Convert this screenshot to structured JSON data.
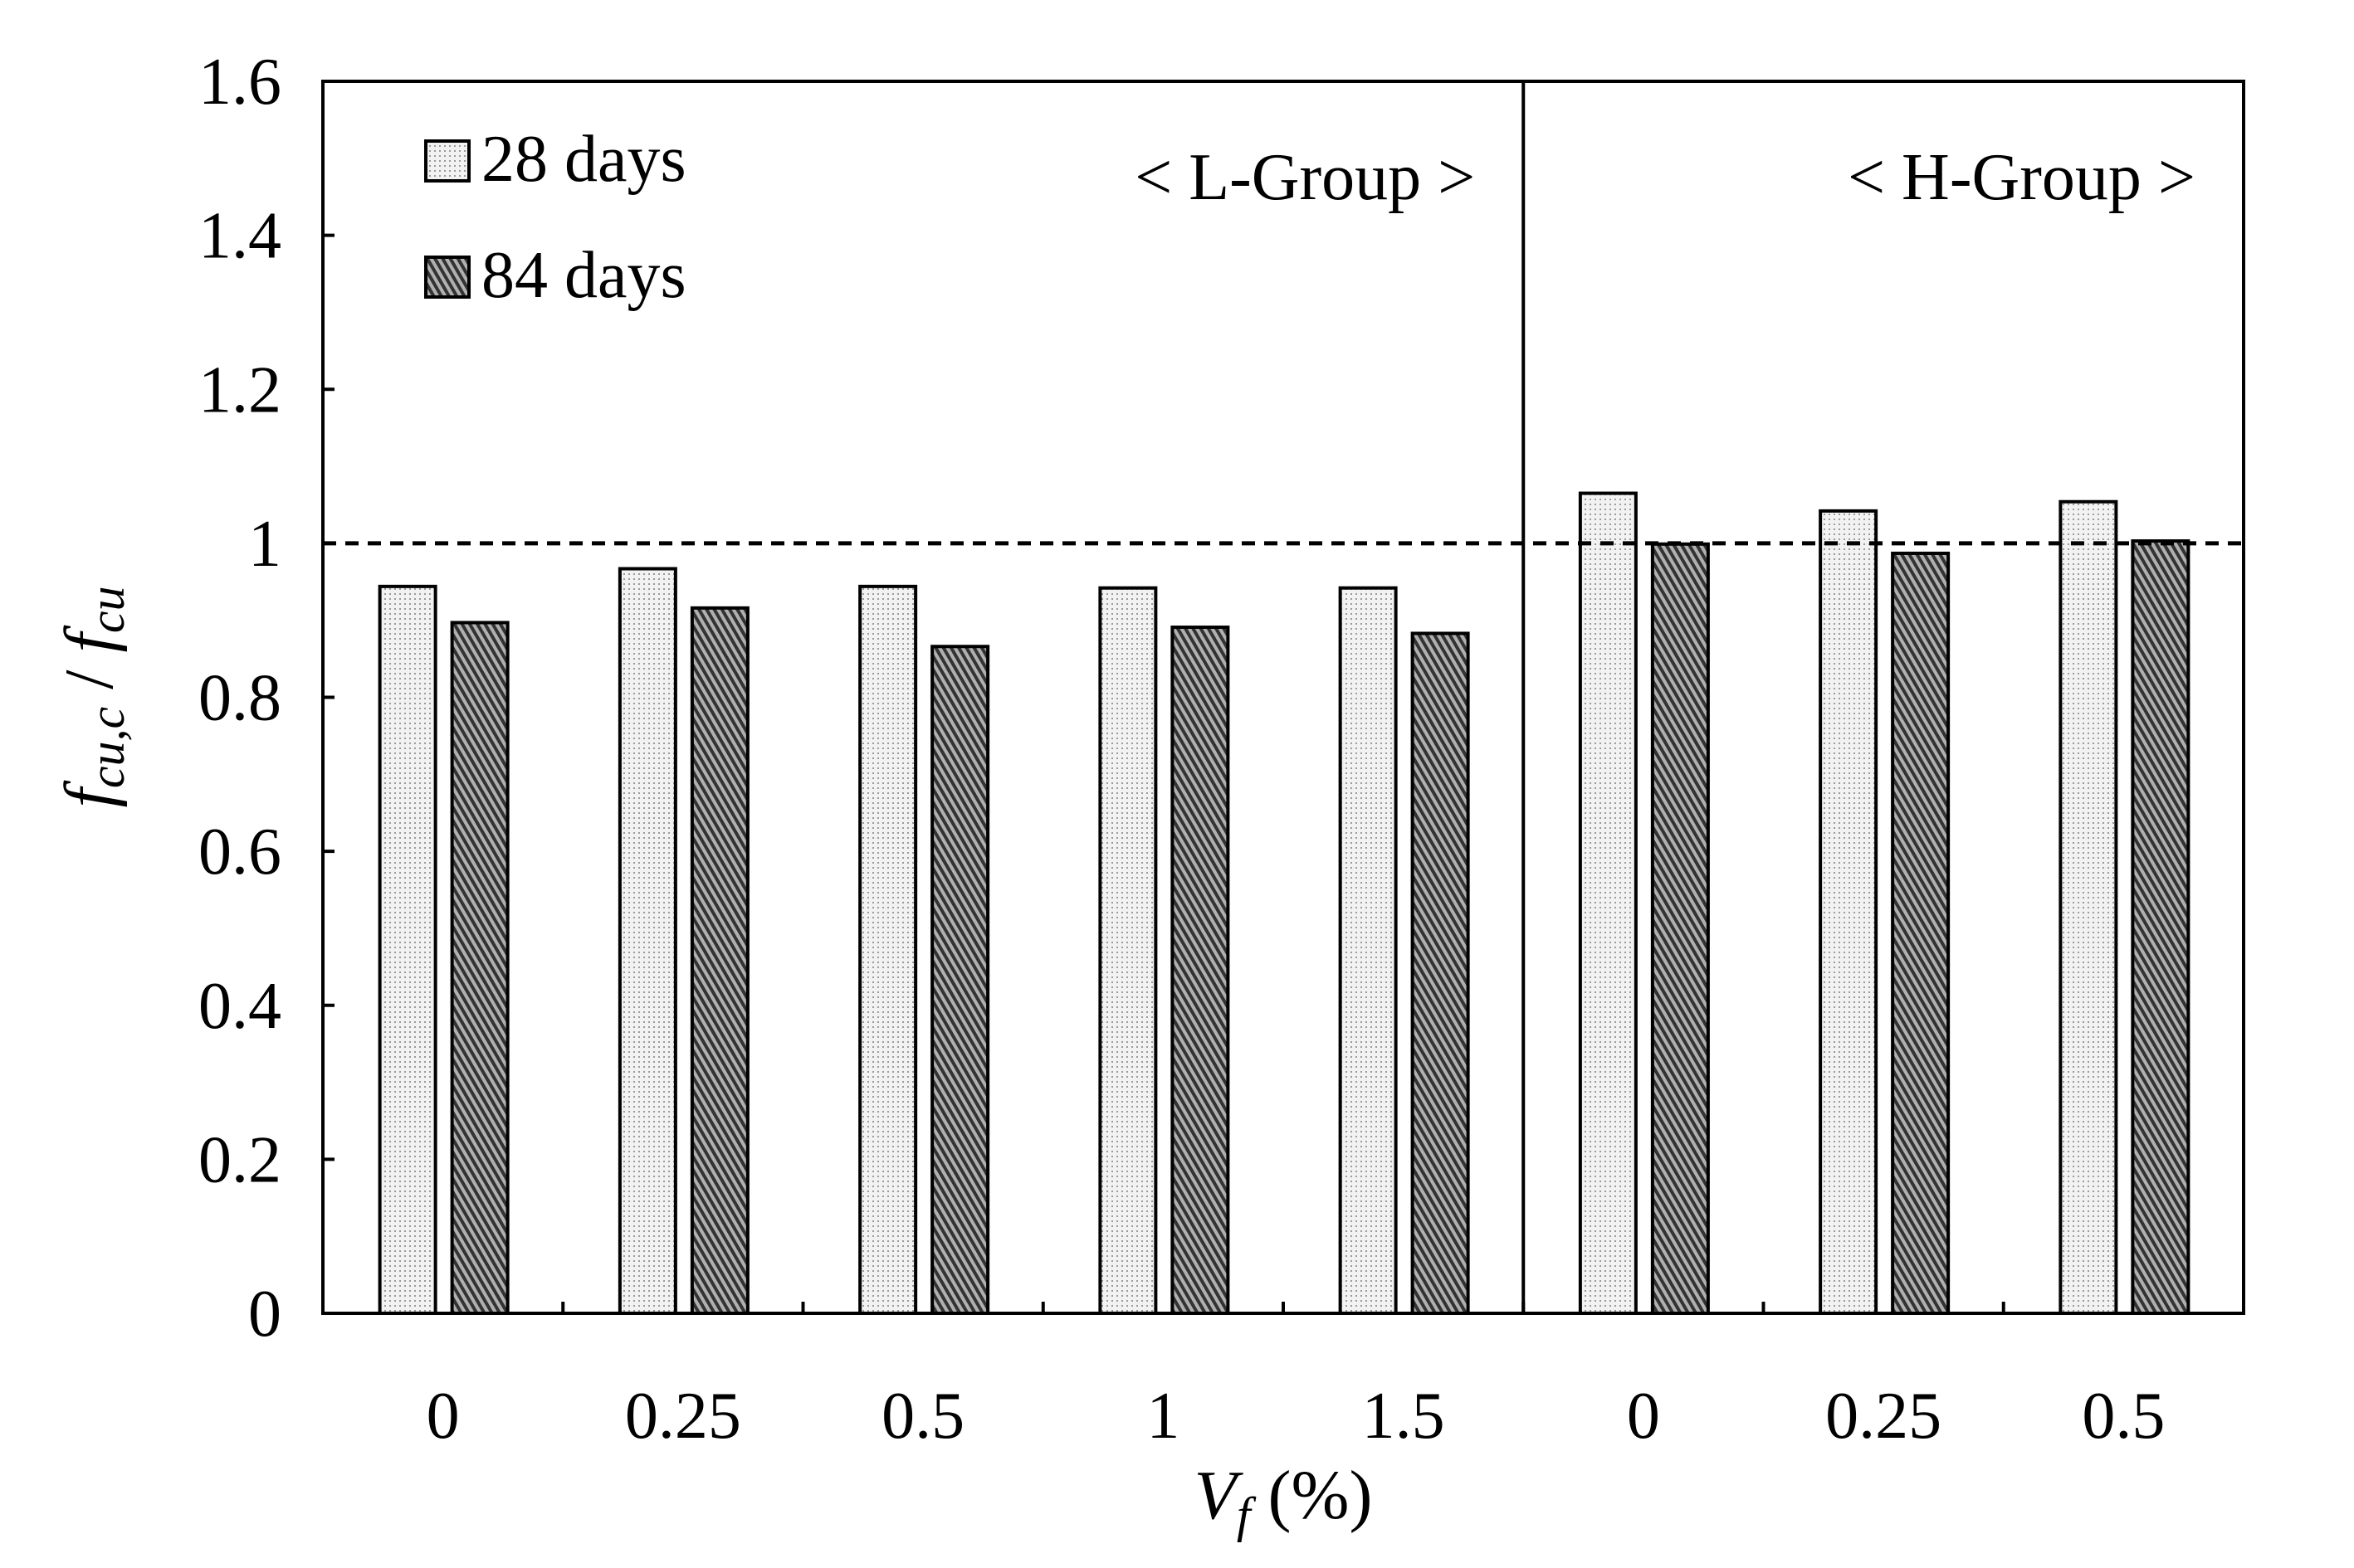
{
  "chart_data": {
    "type": "bar",
    "title": "",
    "xlabel": "V_f (%)",
    "xlabel_main": "V",
    "xlabel_sub": "f",
    "xlabel_rest": " (%)",
    "ylabel": "f_cu,c / f_cu",
    "ylabel_parts": {
      "a": "f",
      "a_sub": "cu,c",
      "sep": " / ",
      "b": "f",
      "b_sub": "cu"
    },
    "ylim": [
      0,
      1.6
    ],
    "yticks": [
      "0",
      "0.2",
      "0.4",
      "0.6",
      "0.8",
      "1",
      "1.2",
      "1.4",
      "1.6"
    ],
    "categories": [
      "0",
      "0.25",
      "0.5",
      "1",
      "1.5",
      "0",
      "0.25",
      "0.5"
    ],
    "groups": [
      {
        "label": "< L-Group >",
        "count": 5
      },
      {
        "label": "< H-Group >",
        "count": 3
      }
    ],
    "reference_line": 1,
    "legend_position": "top-left",
    "series": [
      {
        "name": "28 days",
        "color": "#e8e8e8",
        "values": [
          0.944,
          0.967,
          0.944,
          0.942,
          0.942,
          1.065,
          1.042,
          1.054
        ]
      },
      {
        "name": "84 days",
        "color": "#7a7a7a",
        "values": [
          0.897,
          0.916,
          0.866,
          0.891,
          0.883,
          0.999,
          0.987,
          1.003
        ]
      }
    ]
  }
}
